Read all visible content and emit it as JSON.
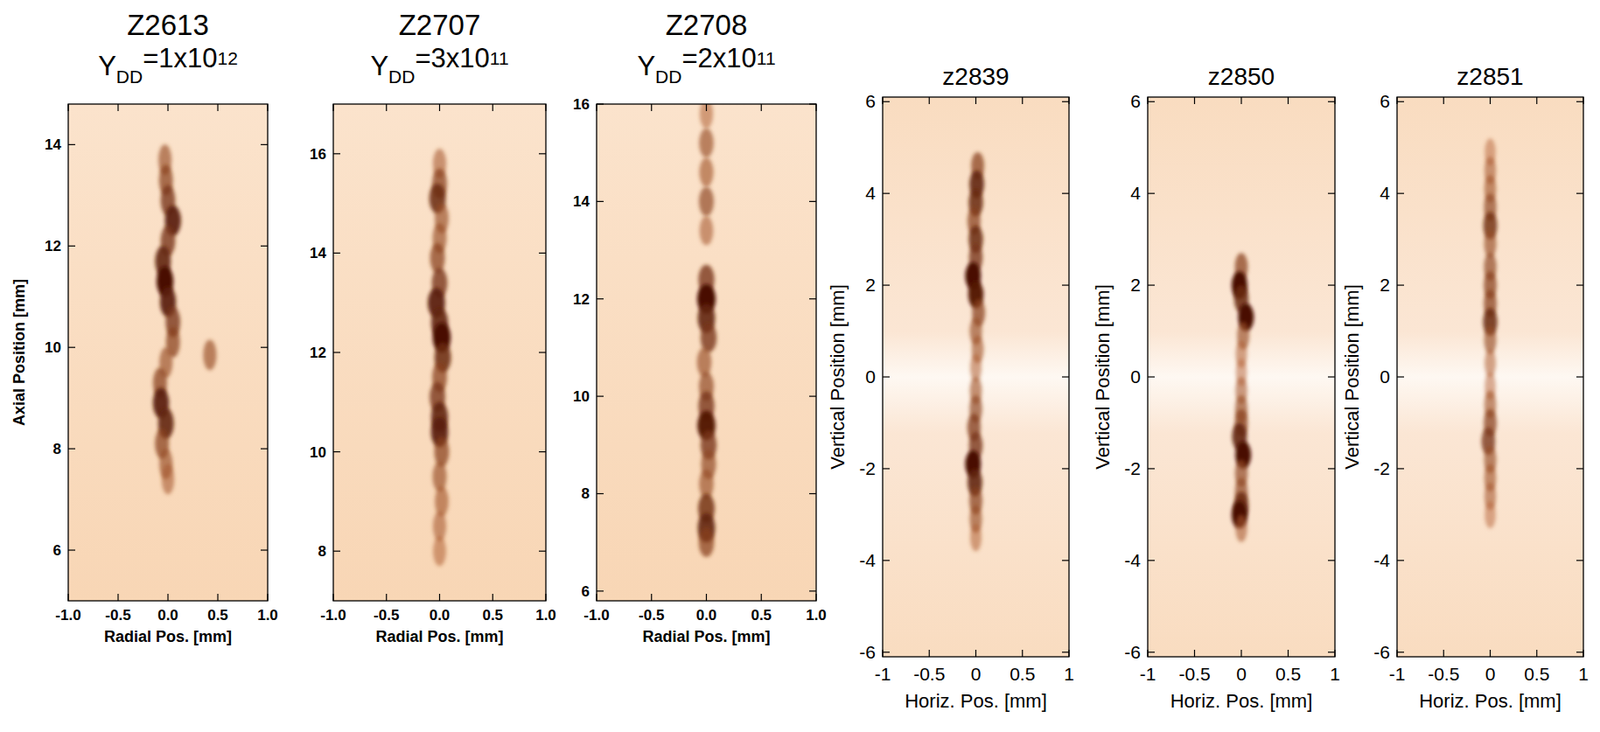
{
  "chart_data": [
    {
      "type": "scatter",
      "title": "Z2613",
      "subtitle": [
        "Y",
        "DD",
        "=1x10",
        "12"
      ],
      "xlabel": "Radial Pos. [mm]",
      "ylabel": "Axial Position [mm]",
      "xlim": [
        -1,
        1
      ],
      "ylim": [
        5,
        14.8
      ],
      "xticks": [
        {
          "value": -1,
          "label": "-1.0"
        },
        {
          "value": -0.5,
          "label": "-0.5"
        },
        {
          "value": 0,
          "label": "0.0"
        },
        {
          "value": 0.5,
          "label": "0.5"
        },
        {
          "value": 1,
          "label": "1.0"
        }
      ],
      "yticks": [
        6,
        8,
        10,
        12,
        14
      ],
      "color": "#4a1000",
      "y": [
        13.7,
        13.3,
        12.9,
        12.5,
        12.1,
        11.7,
        11.3,
        10.9,
        10.5,
        10.1,
        9.7,
        9.3,
        8.9,
        8.5,
        8.1,
        7.7,
        7.4,
        9.85
      ],
      "x": [
        -0.03,
        -0.02,
        0.0,
        0.05,
        0.0,
        -0.05,
        -0.03,
        0.0,
        0.05,
        0.05,
        -0.02,
        -0.08,
        -0.07,
        -0.02,
        -0.06,
        -0.02,
        0.0,
        0.42
      ],
      "intensity": [
        0.5,
        0.6,
        0.7,
        0.9,
        0.7,
        0.85,
        1.0,
        0.9,
        0.7,
        0.6,
        0.5,
        0.6,
        0.9,
        0.85,
        0.6,
        0.5,
        0.4,
        0.5
      ]
    },
    {
      "type": "scatter",
      "title": "Z2707",
      "subtitle": [
        "Y",
        "DD",
        "=3x10",
        "11"
      ],
      "xlabel": "Radial Pos. [mm]",
      "xlim": [
        -1,
        1
      ],
      "ylim": [
        7,
        17
      ],
      "xticks": [
        {
          "value": -1,
          "label": "-1.0"
        },
        {
          "value": -0.5,
          "label": "-0.5"
        },
        {
          "value": 0,
          "label": "0.0"
        },
        {
          "value": 0.5,
          "label": "0.5"
        },
        {
          "value": 1,
          "label": "1.0"
        }
      ],
      "yticks": [
        8,
        10,
        12,
        14,
        16
      ],
      "color": "#4a1000",
      "y": [
        15.8,
        15.4,
        15.1,
        14.7,
        14.3,
        13.9,
        13.4,
        13.0,
        12.6,
        12.3,
        11.9,
        11.5,
        11.1,
        10.7,
        10.4,
        10.0,
        9.5,
        9.0,
        8.5,
        8.0
      ],
      "x": [
        0.0,
        0.0,
        -0.02,
        0.02,
        0.0,
        -0.02,
        0.0,
        -0.03,
        0.0,
        0.02,
        0.03,
        0.0,
        -0.02,
        0.0,
        0.0,
        0.02,
        0.0,
        0.02,
        0.0,
        0.0
      ],
      "intensity": [
        0.4,
        0.6,
        0.8,
        0.5,
        0.5,
        0.6,
        0.7,
        0.9,
        0.85,
        1.0,
        0.8,
        0.6,
        0.7,
        0.85,
        0.9,
        0.6,
        0.5,
        0.45,
        0.4,
        0.35
      ]
    },
    {
      "type": "scatter",
      "title": "Z2708",
      "subtitle": [
        "Y",
        "DD",
        "=2x10",
        "11"
      ],
      "xlabel": "Radial Pos. [mm]",
      "xlim": [
        -1,
        1
      ],
      "ylim": [
        5.8,
        16
      ],
      "xticks": [
        {
          "value": -1,
          "label": "-1.0"
        },
        {
          "value": -0.5,
          "label": "-0.5"
        },
        {
          "value": 0,
          "label": "0.0"
        },
        {
          "value": 0.5,
          "label": "0.5"
        },
        {
          "value": 1,
          "label": "1.0"
        }
      ],
      "yticks": [
        6,
        8,
        10,
        12,
        14,
        16
      ],
      "color": "#4a1000",
      "y": [
        15.8,
        15.2,
        14.6,
        14.0,
        13.4,
        12.4,
        12.0,
        11.6,
        11.2,
        10.7,
        10.2,
        9.8,
        9.4,
        9.0,
        8.6,
        8.2,
        7.7,
        7.3,
        7.0
      ],
      "x": [
        0.0,
        0.0,
        0.0,
        0.0,
        0.0,
        0.0,
        0.0,
        0.0,
        0.02,
        -0.02,
        0.0,
        0.0,
        0.0,
        0.02,
        0.02,
        0.0,
        0.0,
        0.0,
        0.0
      ],
      "intensity": [
        0.35,
        0.5,
        0.45,
        0.55,
        0.4,
        0.7,
        1.0,
        0.85,
        0.7,
        0.5,
        0.55,
        0.7,
        0.95,
        0.7,
        0.55,
        0.5,
        0.75,
        0.85,
        0.6
      ]
    },
    {
      "type": "scatter",
      "title": "z2839",
      "xlabel": "Horiz. Pos. [mm]",
      "ylabel": "Vertical Position [mm]",
      "xlim": [
        -1,
        1
      ],
      "ylim": [
        -6.1,
        6.1
      ],
      "xticks": [
        -1,
        -0.5,
        0,
        0.5,
        1
      ],
      "yticks": [
        -6,
        -4,
        -2,
        0,
        2,
        4,
        6
      ],
      "color": "#4a1000",
      "y": [
        4.6,
        4.2,
        3.8,
        3.4,
        3.0,
        2.6,
        2.2,
        1.8,
        1.4,
        1.0,
        0.6,
        0.2,
        -0.3,
        -0.7,
        -1.1,
        -1.5,
        -1.9,
        -2.3,
        -2.7,
        -3.1,
        -3.5
      ],
      "x": [
        0.02,
        0.01,
        0.0,
        -0.02,
        0.0,
        0.0,
        -0.03,
        0.0,
        0.03,
        0.0,
        0.02,
        0.0,
        0.0,
        0.0,
        -0.02,
        0.0,
        -0.03,
        -0.01,
        0.0,
        0.0,
        0.0
      ],
      "intensity": [
        0.6,
        0.85,
        0.8,
        0.6,
        0.8,
        0.7,
        1.0,
        0.95,
        0.6,
        0.5,
        0.45,
        0.35,
        0.45,
        0.55,
        0.65,
        0.7,
        1.0,
        0.85,
        0.6,
        0.5,
        0.35
      ]
    },
    {
      "type": "scatter",
      "title": "z2850",
      "xlabel": "Horiz. Pos. [mm]",
      "ylabel": "Vertical Position [mm]",
      "xlim": [
        -1,
        1
      ],
      "ylim": [
        -6.1,
        6.1
      ],
      "xticks": [
        -1,
        -0.5,
        0,
        0.5,
        1
      ],
      "yticks": [
        -6,
        -4,
        -2,
        0,
        2,
        4,
        6
      ],
      "color": "#4a1000",
      "y": [
        2.4,
        2.0,
        1.7,
        1.3,
        0.9,
        0.5,
        0.1,
        -0.3,
        -0.7,
        -1.0,
        -1.3,
        -1.7,
        -2.1,
        -2.5,
        -2.8,
        -3.0,
        -3.3
      ],
      "x": [
        0.0,
        -0.02,
        0.0,
        0.05,
        0.02,
        0.0,
        0.0,
        0.0,
        0.0,
        0.0,
        -0.02,
        0.02,
        0.0,
        0.0,
        0.0,
        -0.02,
        0.0
      ],
      "intensity": [
        0.6,
        1.0,
        0.8,
        1.0,
        0.5,
        0.35,
        0.3,
        0.4,
        0.5,
        0.6,
        0.85,
        1.0,
        0.55,
        0.55,
        0.8,
        1.0,
        0.4
      ]
    },
    {
      "type": "scatter",
      "title": "z2851",
      "xlabel": "Horiz. Pos. [mm]",
      "ylabel": "Vertical Position [mm]",
      "xlim": [
        -1,
        1
      ],
      "ylim": [
        -6.1,
        6.1
      ],
      "xticks": [
        -1,
        -0.5,
        0,
        0.5,
        1
      ],
      "yticks": [
        -6,
        -4,
        -2,
        0,
        2,
        4,
        6
      ],
      "color": "#4a1000",
      "y": [
        4.9,
        4.5,
        4.1,
        3.7,
        3.3,
        2.9,
        2.4,
        2.0,
        1.6,
        1.2,
        0.8,
        0.3,
        -0.2,
        -0.6,
        -1.0,
        -1.4,
        -1.8,
        -2.2,
        -2.6,
        -3.0
      ],
      "x": [
        0.0,
        0.0,
        0.0,
        0.0,
        0.0,
        0.0,
        0.0,
        0.0,
        0.0,
        0.0,
        0.0,
        0.0,
        0.0,
        0.0,
        0.0,
        -0.02,
        0.0,
        0.0,
        0.0,
        0.0
      ],
      "intensity": [
        0.3,
        0.4,
        0.45,
        0.55,
        0.75,
        0.5,
        0.55,
        0.6,
        0.6,
        0.8,
        0.5,
        0.35,
        0.3,
        0.45,
        0.6,
        0.7,
        0.5,
        0.45,
        0.4,
        0.3
      ]
    }
  ]
}
